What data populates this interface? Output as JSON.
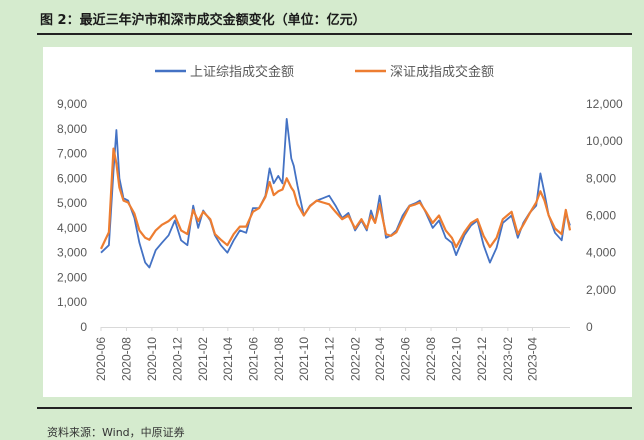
{
  "figure": {
    "title": "图 2：最近三年沪市和深市成交金额变化（单位：亿元）",
    "source": "资料来源：Wind，中原证券"
  },
  "colors": {
    "background": "#d5ebce",
    "series_sh": "#4472c4",
    "series_sz": "#ed7d31"
  },
  "chart_data": {
    "type": "line",
    "title": "",
    "legend_position": "top-center",
    "grid": false,
    "x_axis": {
      "range": [
        "2020-06-01",
        "2023-06-30"
      ],
      "tick_labels": [
        "2020-06",
        "2020-08",
        "2020-10",
        "2020-12",
        "2021-02",
        "2021-04",
        "2021-06",
        "2021-08",
        "2021-10",
        "2021-12",
        "2022-02",
        "2022-04",
        "2022-06",
        "2022-08",
        "2022-10",
        "2022-12",
        "2023-02",
        "2023-04"
      ]
    },
    "y_left": {
      "range": [
        0,
        9000
      ],
      "ticks": [
        0,
        1000,
        2000,
        3000,
        4000,
        5000,
        6000,
        7000,
        8000,
        9000
      ],
      "tick_labels": [
        "0",
        "1,000",
        "2,000",
        "3,000",
        "4,000",
        "5,000",
        "6,000",
        "7,000",
        "8,000",
        "9,000"
      ]
    },
    "y_right": {
      "range": [
        0,
        12000
      ],
      "ticks": [
        0,
        2000,
        4000,
        6000,
        8000,
        10000,
        12000
      ],
      "tick_labels": [
        "0",
        "2,000",
        "4,000",
        "6,000",
        "8,000",
        "10,000",
        "12,000"
      ]
    },
    "series": [
      {
        "name": "上证综指成交金额",
        "axis": "left",
        "color": "#4472c4",
        "x": [
          "2020-06-01",
          "2020-06-20",
          "2020-07-01",
          "2020-07-08",
          "2020-07-15",
          "2020-07-25",
          "2020-08-05",
          "2020-08-20",
          "2020-09-01",
          "2020-09-15",
          "2020-09-25",
          "2020-10-10",
          "2020-10-25",
          "2020-11-10",
          "2020-11-25",
          "2020-12-10",
          "2020-12-25",
          "2021-01-08",
          "2021-01-20",
          "2021-02-01",
          "2021-02-18",
          "2021-03-01",
          "2021-03-15",
          "2021-03-31",
          "2021-04-15",
          "2021-04-30",
          "2021-05-15",
          "2021-05-31",
          "2021-06-15",
          "2021-06-30",
          "2021-07-10",
          "2021-07-20",
          "2021-07-31",
          "2021-08-10",
          "2021-08-20",
          "2021-08-31",
          "2021-09-06",
          "2021-09-15",
          "2021-09-30",
          "2021-10-15",
          "2021-10-31",
          "2021-11-15",
          "2021-11-30",
          "2021-12-15",
          "2021-12-31",
          "2022-01-15",
          "2022-01-31",
          "2022-02-15",
          "2022-02-28",
          "2022-03-10",
          "2022-03-20",
          "2022-03-31",
          "2022-04-15",
          "2022-04-27",
          "2022-05-10",
          "2022-05-25",
          "2022-06-10",
          "2022-06-25",
          "2022-07-05",
          "2022-07-20",
          "2022-08-05",
          "2022-08-20",
          "2022-09-05",
          "2022-09-20",
          "2022-09-30",
          "2022-10-20",
          "2022-11-05",
          "2022-11-20",
          "2022-12-05",
          "2022-12-20",
          "2023-01-05",
          "2023-01-20",
          "2023-02-10",
          "2023-02-25",
          "2023-03-10",
          "2023-03-25",
          "2023-04-10",
          "2023-04-20",
          "2023-04-30",
          "2023-05-10",
          "2023-05-25",
          "2023-06-10",
          "2023-06-20",
          "2023-06-30"
        ],
        "values": [
          3000,
          3300,
          6300,
          7950,
          6000,
          5200,
          5100,
          4400,
          3400,
          2600,
          2400,
          3100,
          3400,
          3700,
          4300,
          3500,
          3300,
          4900,
          4000,
          4700,
          4300,
          3700,
          3300,
          3000,
          3500,
          3900,
          3800,
          4800,
          4800,
          5300,
          6400,
          5800,
          6100,
          5800,
          8400,
          6800,
          6500,
          5700,
          4500,
          4900,
          5100,
          5200,
          5300,
          4900,
          4400,
          4600,
          3900,
          4300,
          3900,
          4700,
          4200,
          5300,
          3600,
          3700,
          3900,
          4500,
          4900,
          5000,
          5100,
          4600,
          4000,
          4300,
          3600,
          3400,
          2900,
          3700,
          4100,
          4300,
          3300,
          2600,
          3200,
          4200,
          4500,
          3600,
          4200,
          4600,
          4900,
          6200,
          5400,
          4500,
          3800,
          3500,
          4600,
          4100
        ]
      },
      {
        "name": "深证成指成交金额",
        "axis": "right",
        "color": "#ed7d31",
        "x": [
          "2020-06-01",
          "2020-06-20",
          "2020-07-01",
          "2020-07-08",
          "2020-07-15",
          "2020-07-25",
          "2020-08-05",
          "2020-08-20",
          "2020-09-01",
          "2020-09-15",
          "2020-09-25",
          "2020-10-10",
          "2020-10-25",
          "2020-11-10",
          "2020-11-25",
          "2020-12-10",
          "2020-12-25",
          "2021-01-08",
          "2021-01-20",
          "2021-02-01",
          "2021-02-18",
          "2021-03-01",
          "2021-03-15",
          "2021-03-31",
          "2021-04-15",
          "2021-04-30",
          "2021-05-15",
          "2021-05-31",
          "2021-06-15",
          "2021-06-30",
          "2021-07-10",
          "2021-07-20",
          "2021-07-31",
          "2021-08-10",
          "2021-08-20",
          "2021-08-31",
          "2021-09-06",
          "2021-09-15",
          "2021-09-30",
          "2021-10-15",
          "2021-10-31",
          "2021-11-15",
          "2021-11-30",
          "2021-12-15",
          "2021-12-31",
          "2022-01-15",
          "2022-01-31",
          "2022-02-15",
          "2022-02-28",
          "2022-03-10",
          "2022-03-20",
          "2022-03-31",
          "2022-04-15",
          "2022-04-27",
          "2022-05-10",
          "2022-05-25",
          "2022-06-10",
          "2022-06-25",
          "2022-07-05",
          "2022-07-20",
          "2022-08-05",
          "2022-08-20",
          "2022-09-05",
          "2022-09-20",
          "2022-09-30",
          "2022-10-20",
          "2022-11-05",
          "2022-11-20",
          "2022-12-05",
          "2022-12-20",
          "2023-01-05",
          "2023-01-20",
          "2023-02-10",
          "2023-02-25",
          "2023-03-10",
          "2023-03-25",
          "2023-04-10",
          "2023-04-20",
          "2023-04-30",
          "2023-05-10",
          "2023-05-25",
          "2023-06-10",
          "2023-06-20",
          "2023-06-30"
        ],
        "values": [
          4200,
          5100,
          9600,
          8800,
          7500,
          6800,
          6700,
          6100,
          5200,
          4800,
          4700,
          5200,
          5500,
          5700,
          6000,
          5200,
          5000,
          6300,
          5700,
          6200,
          5800,
          5000,
          4700,
          4400,
          5000,
          5400,
          5400,
          6200,
          6400,
          7000,
          7800,
          7100,
          7300,
          7400,
          8000,
          7500,
          7300,
          6600,
          6000,
          6500,
          6800,
          6700,
          6600,
          6200,
          5800,
          6000,
          5300,
          5800,
          5300,
          6000,
          5600,
          6600,
          5000,
          4900,
          5100,
          5800,
          6500,
          6600,
          6700,
          6200,
          5600,
          6000,
          5200,
          4800,
          4300,
          5100,
          5600,
          5800,
          4900,
          4300,
          4800,
          5800,
          6200,
          5000,
          5500,
          6100,
          6700,
          7300,
          6800,
          6000,
          5300,
          5000,
          6300,
          5200
        ]
      }
    ]
  }
}
